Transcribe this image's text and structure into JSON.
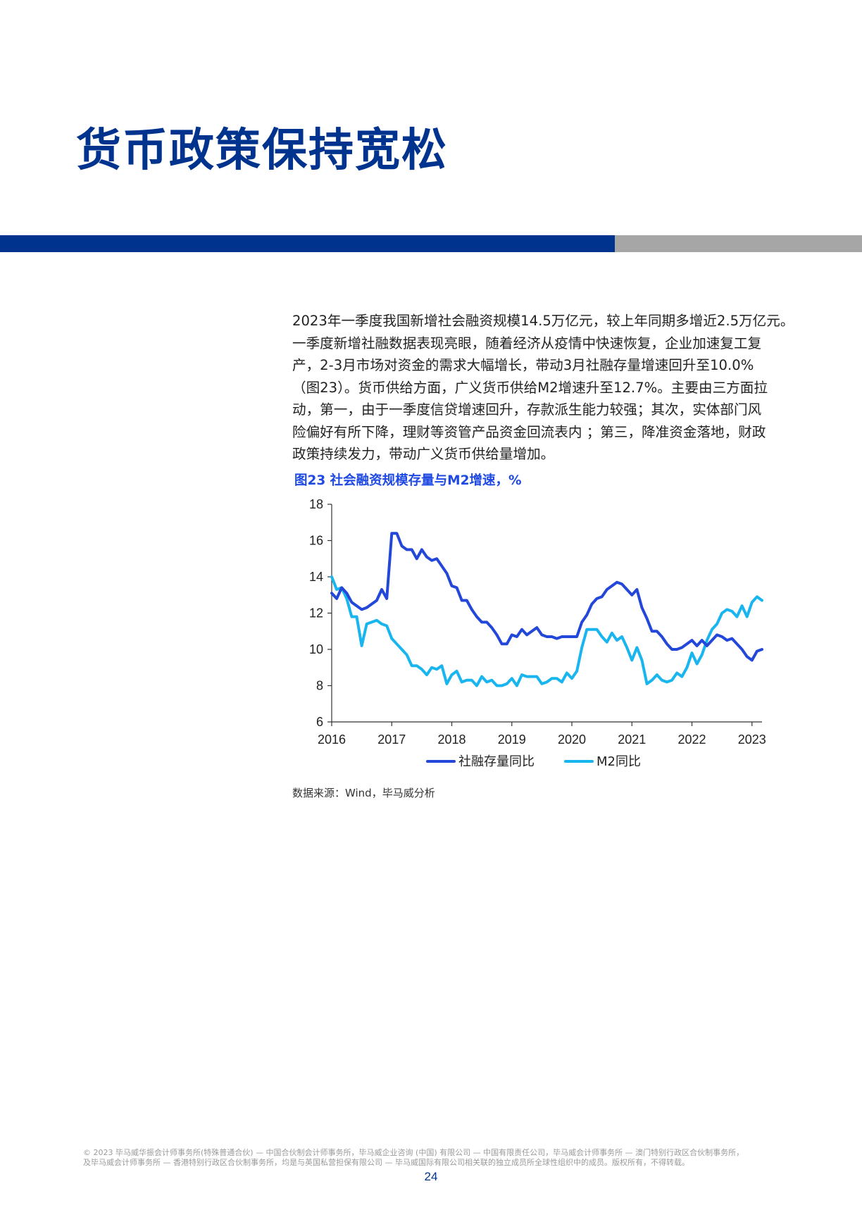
{
  "page": {
    "title": "货币政策保持宽松",
    "accent_color": "#00338d",
    "band_gray_color": "#a6a6a6",
    "page_number": "24"
  },
  "body": {
    "lines": [
      "2023年一季度我国新增社会融资规模14.5万亿元，较上年同期多增近2.5万亿元。",
      "一季度新增社融数据表现亮眼，随着经济从疫情中快速恢复，企业加速复工复",
      "产，2-3月市场对资金的需求大幅增长，带动3月社融存量增速回升至10.0%",
      "（图23）。货币供给方面，广义货币供给M2增速升至12.7%。主要由三方面拉",
      "动，第一，由于一季度信贷增速回升，存款派生能力较强；其次，实体部门风",
      "险偏好有所下降，理财等资管产品资金回流表内 ；第三，降准资金落地，财政",
      "政策持续发力，带动广义货币供给量增加。"
    ]
  },
  "figure": {
    "title": "图23  社会融资规模存量与M2增速，%",
    "source": "数据来源：Wind，毕马威分析"
  },
  "chart_data": {
    "type": "line",
    "xlabel": "",
    "ylabel": "",
    "ylim": [
      6,
      18
    ],
    "yticks": [
      "6",
      "8",
      "10",
      "12",
      "14",
      "16",
      "18"
    ],
    "xticks": [
      "2016",
      "2017",
      "2018",
      "2019",
      "2020",
      "2021",
      "2022",
      "2023"
    ],
    "x_start": "2016-01",
    "legend_position": "bottom",
    "grid": false,
    "series": [
      {
        "name": "社融存量同比",
        "color": "#2347d8",
        "values": [
          13.1,
          12.8,
          13.4,
          13.1,
          12.6,
          12.4,
          12.2,
          12.3,
          12.5,
          12.7,
          13.3,
          12.8,
          16.4,
          16.4,
          15.7,
          15.5,
          15.5,
          15.0,
          15.5,
          15.1,
          14.9,
          15.0,
          14.6,
          14.2,
          13.5,
          13.4,
          12.7,
          12.7,
          12.2,
          11.8,
          11.5,
          11.5,
          11.2,
          10.8,
          10.3,
          10.3,
          10.8,
          10.7,
          11.1,
          10.8,
          11.0,
          11.2,
          10.8,
          10.7,
          10.7,
          10.6,
          10.7,
          10.7,
          10.7,
          10.7,
          11.5,
          11.9,
          12.5,
          12.8,
          12.9,
          13.3,
          13.5,
          13.7,
          13.6,
          13.3,
          13.0,
          13.3,
          12.3,
          11.7,
          11.0,
          11.0,
          10.7,
          10.3,
          10.0,
          10.0,
          10.1,
          10.3,
          10.5,
          10.2,
          10.5,
          10.2,
          10.5,
          10.8,
          10.7,
          10.5,
          10.6,
          10.3,
          10.0,
          9.6,
          9.4,
          9.9,
          10.0
        ],
        "latest_label": "10.0"
      },
      {
        "name": "M2同比",
        "color": "#19b5ef",
        "values": [
          14.0,
          13.3,
          13.4,
          12.8,
          11.8,
          11.8,
          10.2,
          11.4,
          11.5,
          11.6,
          11.4,
          11.3,
          10.6,
          10.3,
          10.0,
          9.7,
          9.1,
          9.1,
          8.9,
          8.6,
          9.0,
          8.9,
          9.1,
          8.1,
          8.6,
          8.8,
          8.2,
          8.3,
          8.3,
          8.0,
          8.5,
          8.2,
          8.3,
          8.0,
          8.0,
          8.1,
          8.4,
          8.0,
          8.6,
          8.5,
          8.5,
          8.5,
          8.1,
          8.2,
          8.4,
          8.4,
          8.2,
          8.7,
          8.4,
          8.8,
          10.1,
          11.1,
          11.1,
          11.1,
          10.7,
          10.4,
          10.9,
          10.5,
          10.7,
          10.1,
          9.4,
          10.1,
          9.4,
          8.1,
          8.3,
          8.6,
          8.3,
          8.2,
          8.3,
          8.7,
          8.5,
          9.0,
          9.8,
          9.2,
          9.7,
          10.5,
          11.1,
          11.4,
          12.0,
          12.2,
          12.1,
          11.8,
          12.4,
          11.8,
          12.6,
          12.9,
          12.7
        ],
        "latest_label": "12.7"
      }
    ]
  },
  "footer": {
    "lines": [
      "© 2023 毕马威华振会计师事务所(特殊普通合伙) — 中国合伙制会计师事务所，毕马威企业咨询 (中国) 有限公司 — 中国有限责任公司，毕马威会计师事务所 — 澳门特别行政区合伙制事务所，",
      "及毕马威会计师事务所 — 香港特别行政区合伙制事务所，均是与英国私营担保有限公司 — 毕马威国际有限公司相关联的独立成员所全球性组织中的成员。版权所有，不得转载。"
    ]
  }
}
